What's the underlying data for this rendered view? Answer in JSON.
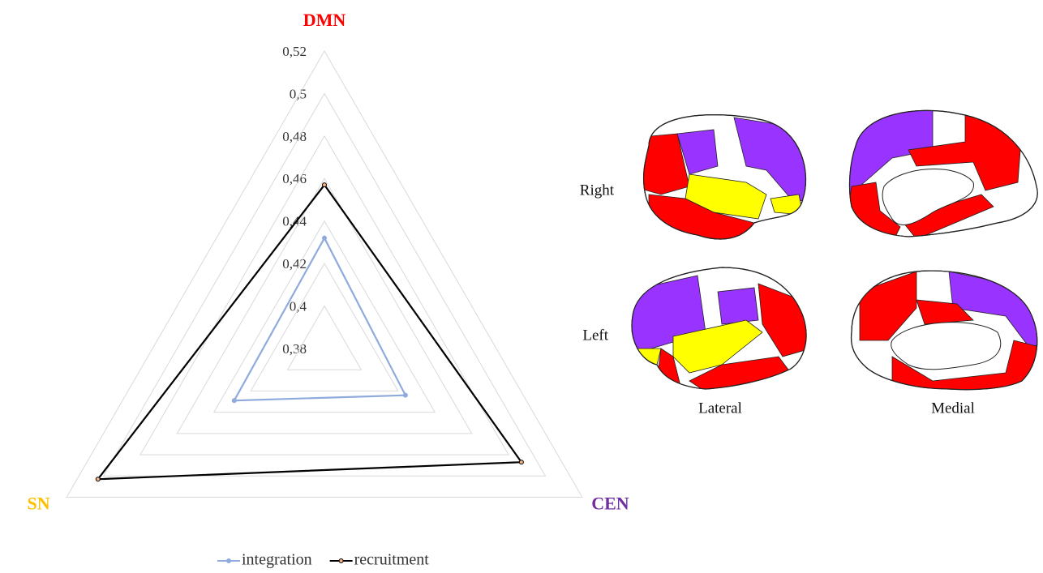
{
  "chart_data": {
    "type": "radar",
    "categories": [
      "DMN",
      "CEN",
      "SN"
    ],
    "category_colors": [
      "#ff0000",
      "#7030a0",
      "#ffc000"
    ],
    "ylim": [
      0.38,
      0.52
    ],
    "yticks": [
      {
        "value": 0.38,
        "label": "0,38"
      },
      {
        "value": 0.4,
        "label": "0,4"
      },
      {
        "value": 0.42,
        "label": "0,42"
      },
      {
        "value": 0.44,
        "label": "0,44"
      },
      {
        "value": 0.46,
        "label": "0,46"
      },
      {
        "value": 0.48,
        "label": "0,48"
      },
      {
        "value": 0.5,
        "label": "0,5"
      },
      {
        "value": 0.52,
        "label": "0,52"
      }
    ],
    "grid": true,
    "legend": "bottom",
    "series": [
      {
        "name": "integration",
        "color": "#8faadc",
        "values": [
          0.432,
          0.424,
          0.429
        ]
      },
      {
        "name": "recruitment",
        "color": "#000000",
        "values": [
          0.457,
          0.487,
          0.503
        ]
      }
    ]
  },
  "brain_panel": {
    "row_labels": [
      "Right",
      "Left"
    ],
    "column_labels": [
      "Lateral",
      "Medial"
    ]
  }
}
